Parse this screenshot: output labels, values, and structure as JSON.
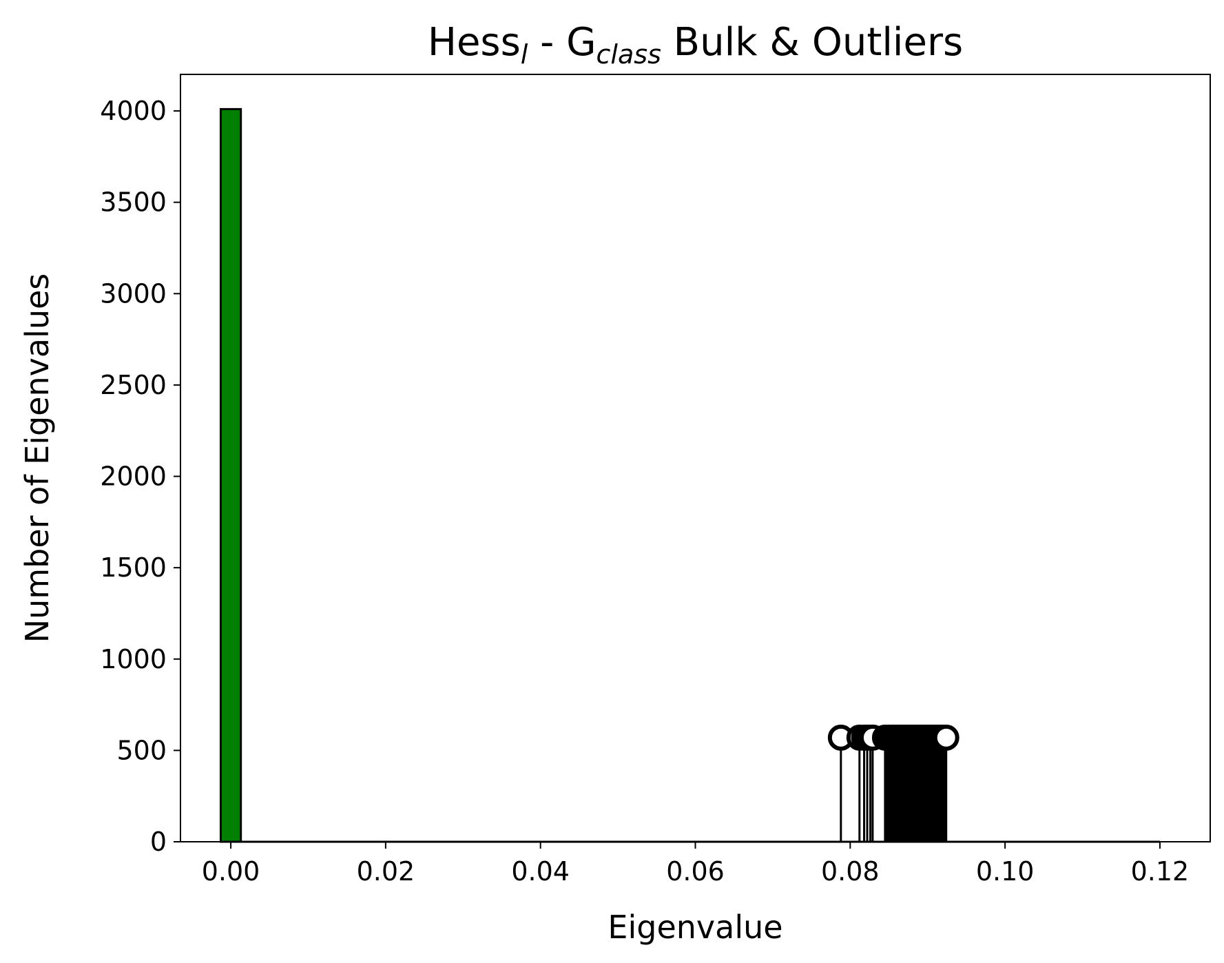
{
  "chart_data": {
    "type": "bar",
    "title": {
      "parts": [
        {
          "text": "Hess",
          "sub": false
        },
        {
          "text": "l",
          "sub": true
        },
        {
          "text": " - G",
          "sub": false
        },
        {
          "text": "class",
          "sub": true
        },
        {
          "text": " Bulk & Outliers",
          "sub": false
        }
      ]
    },
    "xlabel": "Eigenvalue",
    "ylabel": "Number of Eigenvalues",
    "xlim": [
      -0.0065,
      0.1265
    ],
    "ylim": [
      0,
      4200
    ],
    "xticks": [
      0.0,
      0.02,
      0.04,
      0.06,
      0.08,
      0.1,
      0.12
    ],
    "xtick_labels": [
      "0.00",
      "0.02",
      "0.04",
      "0.06",
      "0.08",
      "0.10",
      "0.12"
    ],
    "yticks": [
      0,
      500,
      1000,
      1500,
      2000,
      2500,
      3000,
      3500,
      4000
    ],
    "ytick_labels": [
      "0",
      "500",
      "1000",
      "1500",
      "2000",
      "2500",
      "3000",
      "3500",
      "4000"
    ],
    "grid": false,
    "series": [
      {
        "kind": "histogram-bar",
        "color": "#008000",
        "edgecolor": "#000000",
        "bins": [
          {
            "x0": -0.0013,
            "x1": 0.0013,
            "count": 4010
          }
        ]
      },
      {
        "kind": "outlier-stems",
        "color": "#000000",
        "marker": "open-circle",
        "stem_height": 570,
        "x": [
          0.0788,
          0.0812,
          0.0818,
          0.0822,
          0.0826,
          0.0829,
          0.0845,
          0.085,
          0.0855,
          0.0858,
          0.0861,
          0.0864,
          0.0867,
          0.087,
          0.0873,
          0.0876,
          0.0879,
          0.0882,
          0.0885,
          0.0888,
          0.0891,
          0.0894,
          0.0897,
          0.09,
          0.0903,
          0.0906,
          0.0909,
          0.0912,
          0.0915,
          0.0918,
          0.0921,
          0.0924
        ],
        "filled_range": [
          0.0845,
          0.0924
        ]
      },
      {
        "kind": "line",
        "color": "#000000",
        "x": [
          0.0,
          0.12
        ],
        "y": [
          0,
          0
        ]
      }
    ]
  }
}
